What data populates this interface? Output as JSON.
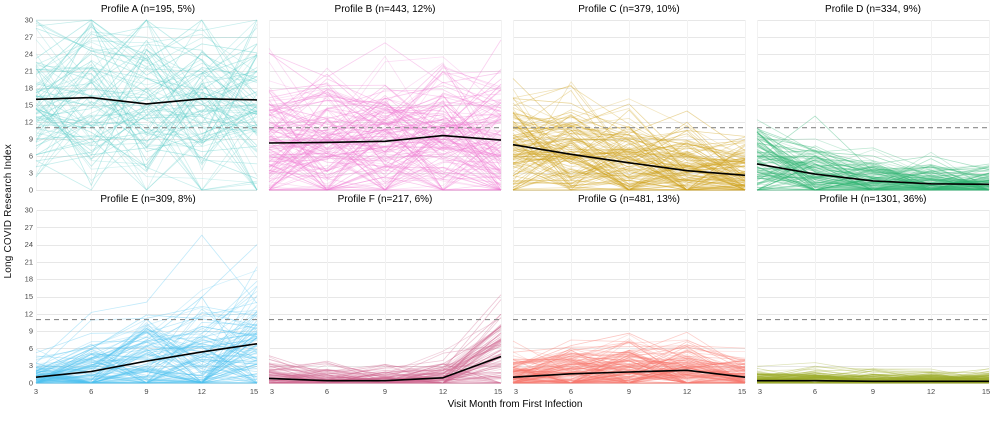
{
  "figure": {
    "kind": "faceted spaghetti plot of individual Long COVID index trajectories with profile means"
  },
  "chart_data": {
    "type": "line",
    "x": [
      3,
      6,
      9,
      12,
      15
    ],
    "xticks": [
      3,
      6,
      9,
      12,
      15
    ],
    "yticks": [
      0,
      3,
      6,
      9,
      12,
      15,
      18,
      21,
      24,
      27,
      30
    ],
    "ylim": [
      0,
      30
    ],
    "xlabel": "Visit Month from First Infection",
    "ylabel": "Long COVID Research Index",
    "grid": true,
    "legend": "none",
    "threshold": {
      "value": 11,
      "style": "dashed",
      "color": "#8a8a8a"
    },
    "mean_line_color": "#000000",
    "panels": [
      {
        "id": "profile-a",
        "title": "Profile A (n=195, 5%)",
        "n": 195,
        "pct": "5%",
        "color": "#58cbc7",
        "mean": [
          16.0,
          16.3,
          15.2,
          16.1,
          15.9
        ],
        "spread": [
          9,
          9,
          9,
          9,
          9
        ],
        "lines": 90
      },
      {
        "id": "profile-b",
        "title": "Profile B (n=443, 12%)",
        "n": 443,
        "pct": "12%",
        "color": "#f07bd3",
        "mean": [
          8.3,
          8.4,
          8.6,
          9.6,
          8.8
        ],
        "spread": [
          6.5,
          6.5,
          6.5,
          6.5,
          6.5
        ],
        "lines": 140
      },
      {
        "id": "profile-c",
        "title": "Profile C (n=379, 10%)",
        "n": 379,
        "pct": "10%",
        "color": "#cfa11a",
        "mean": [
          8.0,
          6.3,
          4.8,
          3.4,
          2.6
        ],
        "spread": [
          5,
          5,
          4.5,
          4,
          3.5
        ],
        "lines": 130
      },
      {
        "id": "profile-d",
        "title": "Profile D (n=334, 9%)",
        "n": 334,
        "pct": "9%",
        "color": "#31b573",
        "mean": [
          4.6,
          2.8,
          1.6,
          1.1,
          1.0
        ],
        "spread": [
          4.5,
          3.5,
          2.5,
          2,
          2
        ],
        "lines": 120
      },
      {
        "id": "profile-e",
        "title": "Profile E (n=309, 8%)",
        "n": 309,
        "pct": "8%",
        "color": "#4fc2f0",
        "mean": [
          1.0,
          2.0,
          3.8,
          5.4,
          6.8
        ],
        "spread": [
          2,
          3.5,
          5,
          6,
          6.5
        ],
        "lines": 115
      },
      {
        "id": "profile-f",
        "title": "Profile F (n=217, 6%)",
        "n": 217,
        "pct": "6%",
        "color": "#d06a92",
        "mean": [
          0.8,
          0.4,
          0.4,
          0.9,
          4.6
        ],
        "spread": [
          1.8,
          1.4,
          1.4,
          2,
          4.5
        ],
        "lines": 95
      },
      {
        "id": "profile-g",
        "title": "Profile G (n=481, 13%)",
        "n": 481,
        "pct": "13%",
        "color": "#f87a70",
        "mean": [
          1.0,
          1.6,
          1.9,
          2.2,
          1.0
        ],
        "spread": [
          2,
          2.6,
          2.6,
          2.6,
          2
        ],
        "lines": 140
      },
      {
        "id": "profile-h",
        "title": "Profile H (n=1301, 36%)",
        "n": 1301,
        "pct": "36%",
        "color": "#9fae2e",
        "mean": [
          0.4,
          0.4,
          0.3,
          0.3,
          0.3
        ],
        "spread": [
          0.9,
          1.1,
          0.9,
          0.9,
          0.9
        ],
        "lines": 150
      }
    ]
  }
}
